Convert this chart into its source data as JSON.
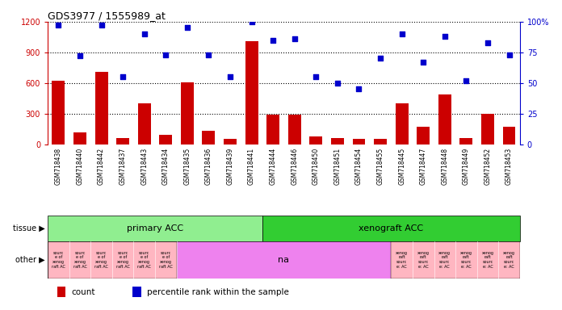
{
  "title": "GDS3977 / 1555989_at",
  "samples": [
    "GSM718438",
    "GSM718440",
    "GSM718442",
    "GSM718437",
    "GSM718443",
    "GSM718434",
    "GSM718435",
    "GSM718436",
    "GSM718439",
    "GSM718441",
    "GSM718444",
    "GSM718446",
    "GSM718450",
    "GSM718451",
    "GSM718454",
    "GSM718455",
    "GSM718445",
    "GSM718447",
    "GSM718448",
    "GSM718449",
    "GSM718452",
    "GSM718453"
  ],
  "counts": [
    620,
    120,
    710,
    65,
    400,
    90,
    610,
    130,
    50,
    1010,
    290,
    290,
    75,
    65,
    50,
    50,
    400,
    175,
    490,
    65,
    300,
    175
  ],
  "percentiles": [
    97,
    72,
    97,
    55,
    90,
    73,
    95,
    73,
    55,
    100,
    85,
    86,
    55,
    50,
    45,
    70,
    90,
    67,
    88,
    52,
    83,
    73
  ],
  "tissue_groups": [
    {
      "label": "primary ACC",
      "start": 0,
      "end": 10,
      "color": "#90EE90"
    },
    {
      "label": "xenograft ACC",
      "start": 10,
      "end": 22,
      "color": "#32CD32"
    }
  ],
  "bar_color": "#CC0000",
  "scatter_color": "#0000CC",
  "ylim_left": [
    0,
    1200
  ],
  "ylim_right": [
    0,
    100
  ],
  "yticks_left": [
    0,
    300,
    600,
    900,
    1200
  ],
  "yticks_right": [
    0,
    25,
    50,
    75,
    100
  ],
  "background_color": "#ffffff",
  "grid_color": "#000000",
  "xlabel_bg": "#d3d3d3",
  "tissue_colors": [
    "#90EE90",
    "#32CD32"
  ],
  "other_pink": "#FFB6C1",
  "other_violet": "#EE82EE"
}
